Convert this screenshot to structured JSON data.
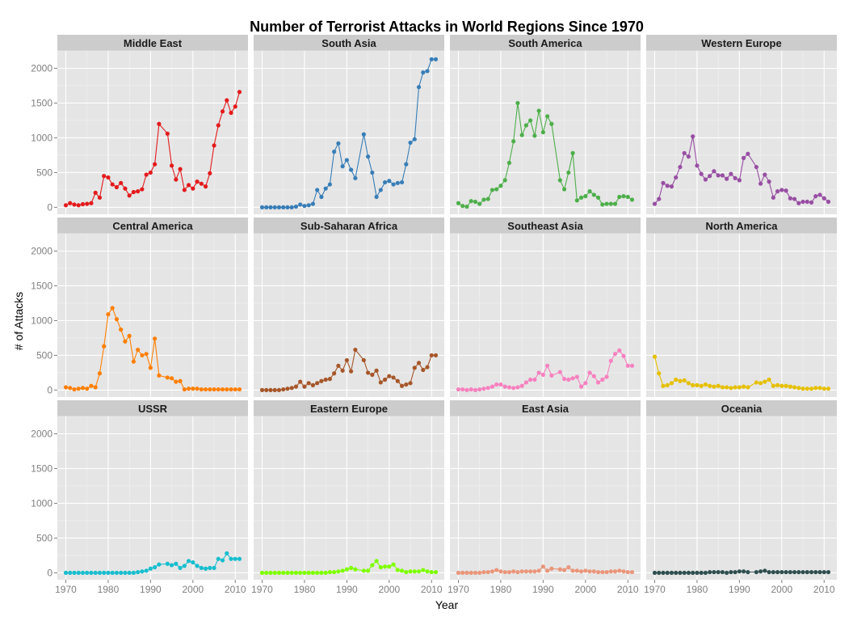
{
  "chart_data": {
    "type": "line",
    "title": "Number of Terrorist Attacks in World Regions Since 1970",
    "xlabel": "Year",
    "ylabel": "# of Attacks",
    "xlim": [
      1968,
      2013
    ],
    "ylim": [
      -100,
      2250
    ],
    "x_ticks": [
      1970,
      1980,
      1990,
      2000,
      2010
    ],
    "y_ticks": [
      0,
      500,
      1000,
      1500,
      2000
    ],
    "grid": true,
    "legend": "none",
    "x": [
      1970,
      1971,
      1972,
      1973,
      1974,
      1975,
      1976,
      1977,
      1978,
      1979,
      1980,
      1981,
      1982,
      1983,
      1984,
      1985,
      1986,
      1987,
      1988,
      1989,
      1990,
      1991,
      1992,
      1994,
      1995,
      1996,
      1997,
      1998,
      1999,
      2000,
      2001,
      2002,
      2003,
      2004,
      2005,
      2006,
      2007,
      2008,
      2009,
      2010,
      2011
    ],
    "series": [
      {
        "name": "Middle East",
        "color": "#e41a1c",
        "values": [
          30,
          60,
          40,
          30,
          45,
          50,
          60,
          210,
          140,
          450,
          430,
          330,
          290,
          350,
          270,
          170,
          220,
          230,
          260,
          470,
          500,
          620,
          1200,
          1060,
          600,
          400,
          550,
          250,
          320,
          270,
          370,
          340,
          300,
          490,
          890,
          1180,
          1380,
          1540,
          1360,
          1450,
          1660
        ]
      },
      {
        "name": "South Asia",
        "color": "#377eb8",
        "values": [
          0,
          0,
          0,
          0,
          0,
          0,
          0,
          0,
          10,
          40,
          20,
          30,
          50,
          250,
          150,
          270,
          330,
          800,
          920,
          590,
          680,
          540,
          420,
          1050,
          730,
          500,
          150,
          250,
          360,
          380,
          330,
          350,
          360,
          620,
          930,
          980,
          1730,
          1940,
          1960,
          2130,
          2130
        ]
      },
      {
        "name": "South America",
        "color": "#4daf4a",
        "values": [
          60,
          20,
          10,
          90,
          80,
          50,
          110,
          120,
          250,
          260,
          310,
          390,
          640,
          950,
          1500,
          1040,
          1180,
          1250,
          1030,
          1390,
          1080,
          1310,
          1200,
          390,
          260,
          500,
          780,
          100,
          140,
          160,
          230,
          180,
          140,
          40,
          50,
          50,
          50,
          150,
          160,
          150,
          110
        ]
      },
      {
        "name": "Western Europe",
        "color": "#984ea3",
        "values": [
          50,
          120,
          350,
          310,
          300,
          430,
          580,
          780,
          730,
          1020,
          600,
          480,
          400,
          450,
          520,
          460,
          460,
          410,
          480,
          420,
          390,
          710,
          770,
          580,
          340,
          470,
          370,
          140,
          230,
          250,
          240,
          130,
          120,
          60,
          80,
          80,
          70,
          160,
          180,
          130,
          80
        ]
      },
      {
        "name": "Central America",
        "color": "#ff7f00",
        "values": [
          40,
          30,
          10,
          20,
          30,
          20,
          60,
          40,
          240,
          630,
          1090,
          1180,
          1020,
          870,
          700,
          780,
          410,
          580,
          500,
          520,
          320,
          740,
          210,
          180,
          170,
          120,
          130,
          10,
          20,
          20,
          20,
          10,
          10,
          10,
          10,
          10,
          10,
          10,
          10,
          10,
          10
        ]
      },
      {
        "name": "Sub-Saharan Africa",
        "color": "#a65628",
        "values": [
          0,
          0,
          0,
          0,
          0,
          10,
          20,
          30,
          50,
          120,
          50,
          100,
          70,
          100,
          130,
          150,
          160,
          240,
          350,
          280,
          430,
          270,
          580,
          430,
          250,
          220,
          280,
          110,
          150,
          200,
          180,
          130,
          60,
          80,
          100,
          320,
          390,
          290,
          330,
          500,
          500
        ]
      },
      {
        "name": "Southeast Asia",
        "color": "#f781bf",
        "values": [
          10,
          10,
          0,
          10,
          0,
          10,
          20,
          30,
          50,
          80,
          80,
          50,
          40,
          30,
          40,
          60,
          110,
          150,
          150,
          250,
          220,
          350,
          210,
          260,
          160,
          150,
          170,
          190,
          50,
          100,
          250,
          200,
          110,
          150,
          190,
          420,
          520,
          570,
          490,
          350,
          350
        ]
      },
      {
        "name": "North America",
        "color": "#e6c000",
        "values": [
          480,
          240,
          60,
          70,
          100,
          150,
          130,
          140,
          100,
          70,
          70,
          60,
          80,
          60,
          50,
          60,
          40,
          40,
          30,
          40,
          40,
          50,
          40,
          110,
          100,
          120,
          150,
          60,
          70,
          60,
          60,
          50,
          40,
          30,
          20,
          20,
          20,
          30,
          30,
          20,
          20
        ]
      },
      {
        "name": "USSR",
        "color": "#17becf",
        "values": [
          0,
          0,
          0,
          0,
          0,
          0,
          0,
          0,
          0,
          0,
          0,
          0,
          0,
          0,
          0,
          0,
          0,
          10,
          20,
          30,
          60,
          80,
          120,
          130,
          110,
          130,
          70,
          100,
          170,
          150,
          100,
          70,
          60,
          70,
          70,
          200,
          180,
          280,
          200,
          200,
          200
        ]
      },
      {
        "name": "Eastern Europe",
        "color": "#7fff00",
        "values": [
          0,
          0,
          0,
          0,
          0,
          0,
          0,
          0,
          0,
          0,
          0,
          0,
          0,
          0,
          0,
          0,
          10,
          10,
          20,
          30,
          50,
          70,
          50,
          30,
          30,
          110,
          170,
          80,
          90,
          90,
          120,
          40,
          30,
          10,
          20,
          20,
          20,
          40,
          20,
          10,
          10
        ]
      },
      {
        "name": "East Asia",
        "color": "#e9967a",
        "values": [
          0,
          0,
          0,
          0,
          0,
          0,
          10,
          10,
          20,
          40,
          20,
          10,
          10,
          20,
          10,
          20,
          20,
          20,
          20,
          30,
          90,
          30,
          60,
          50,
          40,
          80,
          30,
          30,
          20,
          30,
          20,
          20,
          10,
          10,
          10,
          20,
          20,
          30,
          20,
          10,
          10
        ]
      },
      {
        "name": "Oceania",
        "color": "#2f4f4f",
        "values": [
          0,
          0,
          0,
          0,
          0,
          0,
          0,
          0,
          0,
          0,
          0,
          0,
          0,
          10,
          10,
          10,
          10,
          0,
          10,
          10,
          20,
          20,
          10,
          10,
          20,
          30,
          10,
          10,
          10,
          10,
          10,
          10,
          10,
          10,
          10,
          10,
          10,
          10,
          10,
          10,
          10
        ]
      }
    ]
  }
}
